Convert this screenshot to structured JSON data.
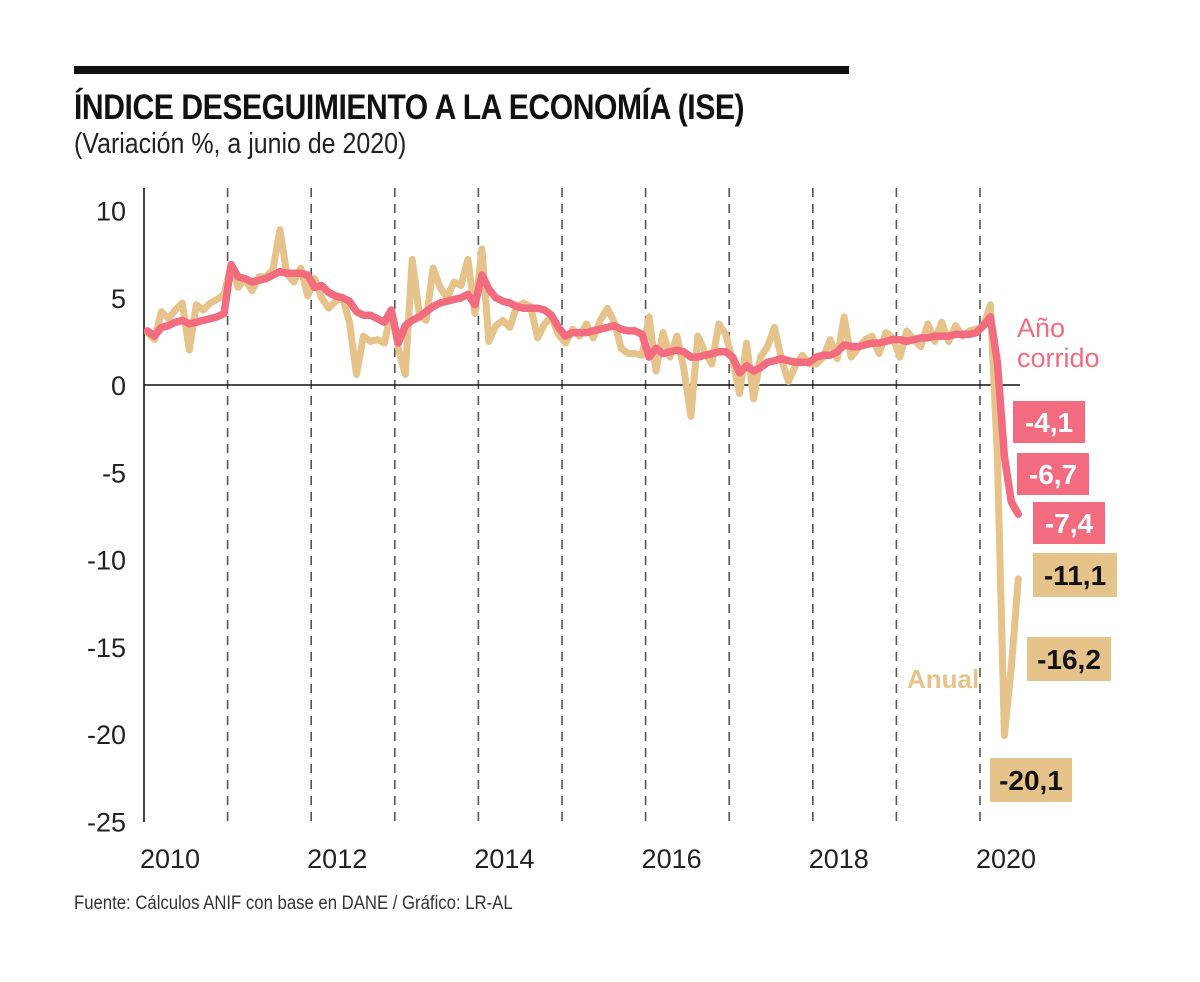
{
  "header": {
    "title": "ÍNDICE DESEGUIMIENTO A LA ECONOMÍA (ISE)",
    "subtitle": "(Variación %, a junio de 2020)"
  },
  "footer": {
    "source": "Fuente: Cálculos ANIF con base en DANE / Gráfico: LR-AL"
  },
  "colors": {
    "anual": "#e6c38a",
    "ano_corrido": "#f26b7e",
    "axis": "#111111",
    "grid": "#555555"
  },
  "chart_data": {
    "type": "line",
    "title": "ÍNDICE DESEGUIMIENTO A LA ECONOMÍA (ISE)",
    "subtitle": "(Variación %, a junio de 2020)",
    "xlabel": "",
    "ylabel": "",
    "ylim": [
      -25,
      10
    ],
    "yticks": [
      10,
      5,
      0,
      -5,
      -10,
      -15,
      -20,
      -25
    ],
    "ytick_labels": [
      "10",
      "5",
      "0",
      "-5",
      "-10",
      "-15",
      "-20",
      "-25"
    ],
    "xlim": [
      2010.0,
      2020.5
    ],
    "xticks": [
      2010,
      2012,
      2014,
      2016,
      2018,
      2020
    ],
    "xtick_labels": [
      "2010",
      "2012",
      "2014",
      "2016",
      "2018",
      "2020"
    ],
    "year_gridlines": [
      2011,
      2012,
      2013,
      2014,
      2015,
      2016,
      2017,
      2018,
      2019,
      2020
    ],
    "grid": "vertical dashed at year boundaries",
    "frequency": "monthly, Jan 2010 – Jun 2020",
    "series": [
      {
        "name": "Anual",
        "label": "Anual",
        "values": [
          3.0,
          2.6,
          4.2,
          3.8,
          4.3,
          4.7,
          2.0,
          4.6,
          4.3,
          4.7,
          4.9,
          5.2,
          6.9,
          5.6,
          6.1,
          5.4,
          6.2,
          6.2,
          6.6,
          8.9,
          6.4,
          5.9,
          6.7,
          5.1,
          6.1,
          5.0,
          4.4,
          4.8,
          5.0,
          3.6,
          0.6,
          2.8,
          2.5,
          2.6,
          2.4,
          4.3,
          2.1,
          0.6,
          7.2,
          4.1,
          3.7,
          6.7,
          5.6,
          5.0,
          5.9,
          5.7,
          7.2,
          4.1,
          7.8,
          2.5,
          3.4,
          3.7,
          3.3,
          4.5,
          4.7,
          4.5,
          2.7,
          3.5,
          3.9,
          2.9,
          2.4,
          3.2,
          2.8,
          3.5,
          2.7,
          3.7,
          4.4,
          3.6,
          2.1,
          1.8,
          1.8,
          1.7,
          3.9,
          0.8,
          3.0,
          1.6,
          2.8,
          0.9,
          -1.8,
          2.8,
          1.9,
          1.2,
          3.5,
          2.9,
          1.4,
          -0.5,
          2.4,
          -0.8,
          1.6,
          2.2,
          3.3,
          1.5,
          0.2,
          1.1,
          1.7,
          1.2,
          1.2,
          1.6,
          2.6,
          1.5,
          3.9,
          1.6,
          2.1,
          2.6,
          2.8,
          1.8,
          3.0,
          2.7,
          1.6,
          3.1,
          2.6,
          2.2,
          3.5,
          2.5,
          3.6,
          2.5,
          3.4,
          2.8,
          3.1,
          3.2,
          3.4,
          4.6,
          -4.1,
          -20.1,
          -16.2,
          -11.1
        ],
        "annotations": [
          {
            "month_index": 123,
            "label": "-20,1"
          },
          {
            "month_index": 124,
            "label": "-16,2"
          },
          {
            "month_index": 125,
            "label": "-11,1"
          }
        ]
      },
      {
        "name": "Año corrido",
        "label": "Año corrido",
        "values": [
          3.1,
          2.8,
          3.3,
          3.4,
          3.6,
          3.7,
          3.5,
          3.6,
          3.7,
          3.8,
          3.9,
          4.1,
          6.9,
          6.2,
          6.1,
          5.9,
          6.0,
          6.1,
          6.3,
          6.5,
          6.4,
          6.4,
          6.4,
          6.3,
          5.6,
          5.7,
          5.3,
          5.1,
          5.0,
          4.8,
          4.2,
          4.0,
          4.0,
          3.8,
          3.6,
          4.3,
          2.4,
          3.4,
          3.7,
          3.9,
          4.2,
          4.5,
          4.7,
          4.8,
          4.9,
          5.0,
          5.2,
          4.6,
          6.3,
          5.5,
          5.0,
          4.8,
          4.7,
          4.5,
          4.4,
          4.4,
          4.4,
          4.3,
          4.0,
          3.3,
          2.8,
          3.0,
          3.0,
          3.0,
          3.1,
          3.2,
          3.3,
          3.4,
          3.2,
          3.1,
          3.1,
          2.9,
          1.6,
          2.1,
          1.8,
          1.9,
          2.0,
          1.9,
          1.6,
          1.6,
          1.7,
          1.8,
          1.9,
          1.9,
          1.6,
          0.7,
          1.1,
          0.8,
          1.0,
          1.3,
          1.4,
          1.5,
          1.4,
          1.3,
          1.3,
          1.3,
          1.6,
          1.7,
          1.7,
          1.9,
          2.3,
          2.2,
          2.2,
          2.3,
          2.4,
          2.4,
          2.5,
          2.6,
          2.6,
          2.5,
          2.6,
          2.7,
          2.7,
          2.8,
          2.8,
          2.8,
          2.9,
          2.9,
          2.9,
          3.0,
          3.4,
          3.9,
          1.3,
          -4.1,
          -6.7,
          -7.4
        ],
        "annotations": [
          {
            "month_index": 123,
            "label": "-4,1"
          },
          {
            "month_index": 124,
            "label": "-6,7"
          },
          {
            "month_index": 125,
            "label": "-7,4"
          }
        ]
      }
    ],
    "series_labels": {
      "ano_corrido": "Año corrido",
      "ano_corrido_line1": "Año",
      "ano_corrido_line2": "corrido",
      "anual": "Anual"
    },
    "legend": "inline labels at right end of lines"
  }
}
